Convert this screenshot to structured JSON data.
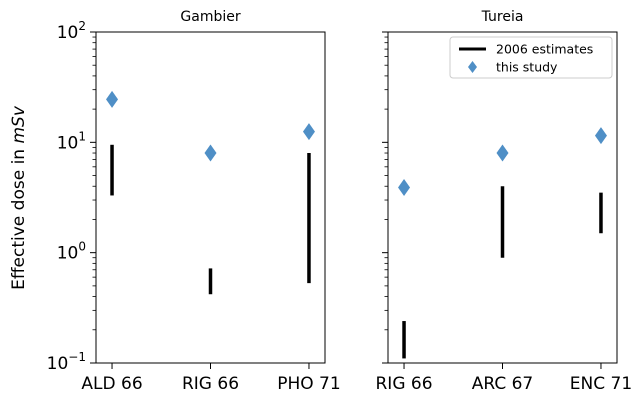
{
  "chart_data": {
    "type": "range-and-scatter",
    "yscale": "log",
    "ylim": [
      0.1,
      100
    ],
    "ylabel": {
      "prefix": "Effective dose in ",
      "unit": "mSv"
    },
    "yticks": [
      {
        "value": 0.1,
        "base": "10",
        "exp": "−1"
      },
      {
        "value": 1,
        "base": "10",
        "exp": "0"
      },
      {
        "value": 10,
        "base": "10",
        "exp": "1"
      },
      {
        "value": 100,
        "base": "10",
        "exp": "2"
      }
    ],
    "legend": {
      "placement": "top-right",
      "panel": 1,
      "entries": [
        {
          "label": "2006 estimates",
          "marker": "bar",
          "color": "#000000"
        },
        {
          "label": "this study",
          "marker": "diamond",
          "color": "#4f8fc6"
        }
      ]
    },
    "panels": [
      {
        "title": "Gambier",
        "categories": [
          "ALD 66",
          "RIG 66",
          "PHO 71"
        ],
        "estimates_2006": [
          [
            3.3,
            9.5
          ],
          [
            0.42,
            0.72
          ],
          [
            0.53,
            8.0
          ]
        ],
        "this_study": [
          24.5,
          8.0,
          12.5
        ]
      },
      {
        "title": "Tureia",
        "categories": [
          "RIG 66",
          "ARC 67",
          "ENC 71"
        ],
        "estimates_2006": [
          [
            0.11,
            0.24
          ],
          [
            0.9,
            4.0
          ],
          [
            1.5,
            3.5
          ]
        ],
        "this_study": [
          3.9,
          8.0,
          11.5
        ]
      }
    ]
  }
}
